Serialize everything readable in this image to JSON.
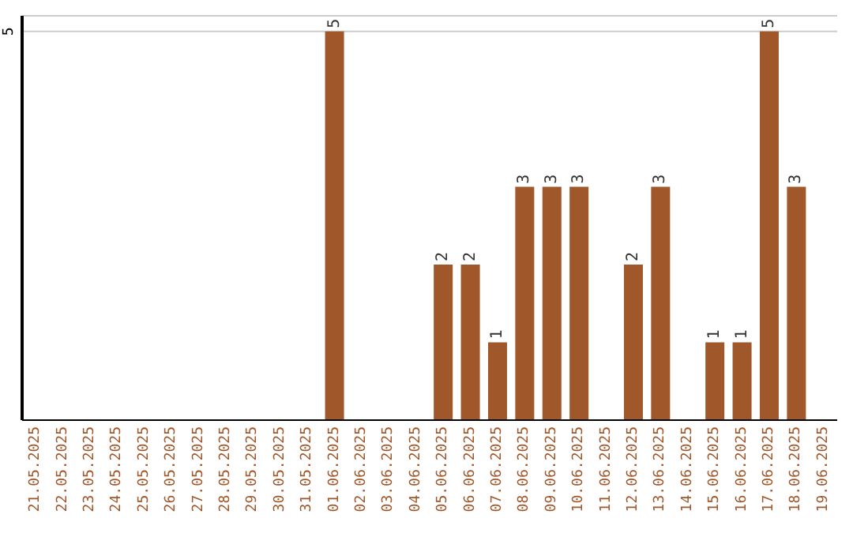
{
  "chart_data": {
    "type": "bar",
    "categories": [
      "21.05.2025",
      "22.05.2025",
      "23.05.2025",
      "24.05.2025",
      "25.05.2025",
      "26.05.2025",
      "27.05.2025",
      "28.05.2025",
      "29.05.2025",
      "30.05.2025",
      "31.05.2025",
      "01.06.2025",
      "02.06.2025",
      "03.06.2025",
      "04.06.2025",
      "05.06.2025",
      "06.06.2025",
      "07.06.2025",
      "08.06.2025",
      "09.06.2025",
      "10.06.2025",
      "11.06.2025",
      "12.06.2025",
      "13.06.2025",
      "14.06.2025",
      "15.06.2025",
      "16.06.2025",
      "17.06.2025",
      "18.06.2025",
      "19.06.2025"
    ],
    "values": [
      null,
      null,
      null,
      null,
      null,
      null,
      null,
      null,
      null,
      null,
      null,
      5,
      null,
      null,
      null,
      2,
      2,
      1,
      3,
      3,
      3,
      null,
      2,
      3,
      null,
      1,
      1,
      5,
      3,
      null
    ],
    "color": "#a0572a",
    "ylim": [
      0,
      5.2
    ],
    "yticks": [
      5
    ],
    "grid": "y",
    "data_labels": true
  }
}
